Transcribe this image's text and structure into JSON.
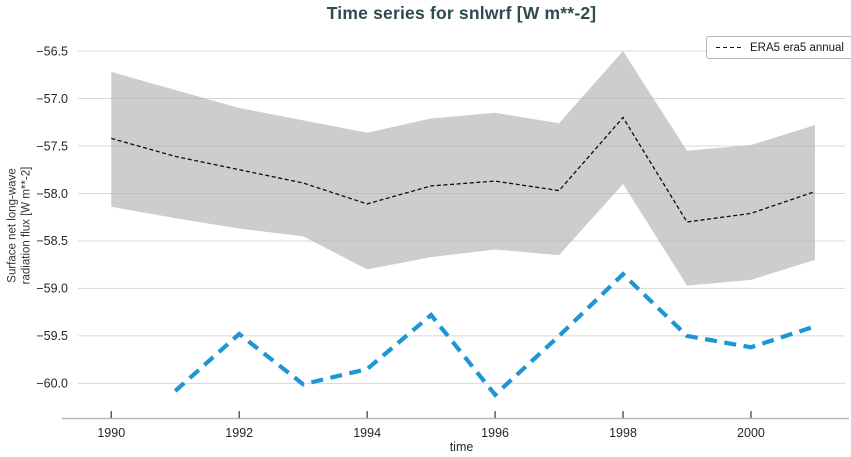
{
  "colors": {
    "title": "#2e4c50",
    "grid": "#d8d8d8",
    "spine": "#b8b8b8",
    "tick": "#444444",
    "tick_label": "#262626",
    "band_fill": "rgba(174,174,174,0.62)",
    "era5_line": "#0d0d0d",
    "blue_line": "#1f96d4",
    "legend_border": "#b5b5b5"
  },
  "chart_data": {
    "type": "line",
    "title": "Time series for snlwrf [W m**-2]",
    "xlabel": "time",
    "ylabel": "Surface net long-wave radiation flux [W m**-2]",
    "ylabel_lines": [
      "Surface net long-wave",
      "radiation flux [W m**-2]"
    ],
    "x_ticks": [
      1990,
      1992,
      1994,
      1996,
      1998,
      2000
    ],
    "y_ticks": [
      -56.5,
      -57.0,
      -57.5,
      -58.0,
      -58.5,
      -59.0,
      -59.5,
      -60.0
    ],
    "xlim": [
      1989.48,
      2001.47
    ],
    "ylim": [
      -60.37,
      -56.31
    ],
    "grid": "horizontal",
    "legend_position": "upper right",
    "series": [
      {
        "id": "era5-annual",
        "name": "ERA5 era5 annual",
        "color": "#0d0d0d",
        "dash": "4 2.6",
        "width": 1.3,
        "x": [
          1990,
          1991,
          1992,
          1993,
          1994,
          1995,
          1996,
          1997,
          1998,
          1999,
          2000,
          2001
        ],
        "values": [
          -57.42,
          -57.61,
          -57.75,
          -57.89,
          -58.11,
          -57.92,
          -57.87,
          -57.97,
          -57.2,
          -58.3,
          -58.21,
          -57.98
        ]
      },
      {
        "id": "blue-series",
        "name": "",
        "color": "#1f96d4",
        "dash": "12 7.5",
        "width": 4.2,
        "x": [
          1991,
          1992,
          1993,
          1994,
          1995,
          1996,
          1997,
          1998,
          1999,
          2000,
          2001
        ],
        "values": [
          -60.08,
          -59.48,
          -60.01,
          -59.85,
          -59.28,
          -60.12,
          -59.5,
          -58.85,
          -59.5,
          -59.62,
          -59.4
        ]
      }
    ],
    "band": {
      "id": "era5-range-band",
      "x": [
        1990,
        1991,
        1992,
        1993,
        1994,
        1995,
        1996,
        1997,
        1998,
        1999,
        2000,
        2001
      ],
      "upper": [
        -56.72,
        -56.91,
        -57.1,
        -57.23,
        -57.36,
        -57.21,
        -57.15,
        -57.26,
        -56.5,
        -57.55,
        -57.49,
        -57.28
      ],
      "lower": [
        -58.14,
        -58.26,
        -58.37,
        -58.45,
        -58.8,
        -58.67,
        -58.59,
        -58.65,
        -57.9,
        -58.97,
        -58.91,
        -58.7
      ]
    }
  }
}
